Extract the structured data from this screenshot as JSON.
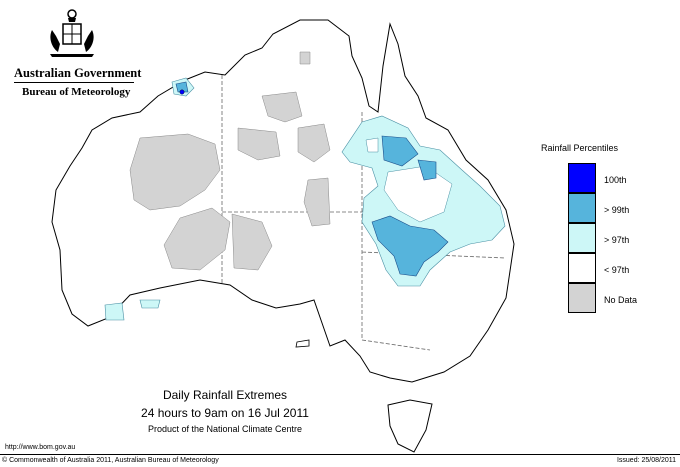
{
  "agency": {
    "government": "Australian Government",
    "bureau": "Bureau of Meteorology"
  },
  "legend": {
    "title": "Rainfall Percentiles",
    "items": [
      {
        "label": "100th",
        "color": "#0000ff"
      },
      {
        "label": "> 99th",
        "color": "#56b4dc"
      },
      {
        "label": "> 97th",
        "color": "#cdf7f7"
      },
      {
        "label": "< 97th",
        "color": "#ffffff"
      },
      {
        "label": "No Data",
        "color": "#d3d3d3"
      }
    ]
  },
  "caption": {
    "title": "Daily Rainfall Extremes",
    "period": "24 hours to 9am on 16 Jul 2011",
    "product": "Product of the National Climate Centre"
  },
  "footer": {
    "url": "http://www.bom.gov.au",
    "copyright": "© Commonwealth of Australia 2011, Australian Bureau of Meteorology",
    "issued": "Issued: 25/08/2011"
  }
}
